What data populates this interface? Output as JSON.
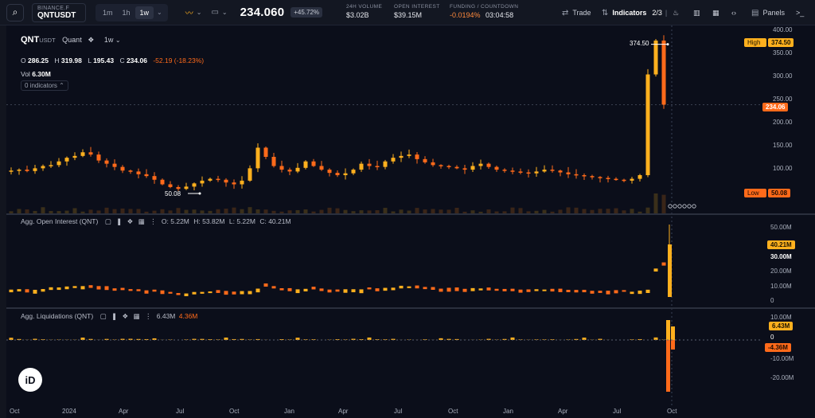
{
  "header": {
    "exchange": "BINANCE.F",
    "symbol": "QNTUSDT",
    "timeframes": [
      {
        "label": "1m",
        "active": false
      },
      {
        "label": "1h",
        "active": false
      },
      {
        "label": "1w",
        "active": true
      }
    ],
    "price": "234.060",
    "change": "+45.72%",
    "stats": [
      {
        "label": "24H VOLUME",
        "value": "$3.02B"
      },
      {
        "label": "OPEN INTEREST",
        "value": "$39.15M"
      },
      {
        "label": "FUNDING / COUNTDOWN",
        "value": "-0.0194%",
        "value2": "03:04:58"
      }
    ],
    "trade_label": "Trade",
    "indicators_label": "Indicators",
    "indicators_count": "2/3",
    "panels_label": "Panels"
  },
  "legend": {
    "title": "QNT",
    "quote": "USDT",
    "source": "Quant",
    "interval": "1w",
    "open": "286.25",
    "high": "319.98",
    "low": "195.43",
    "close": "234.06",
    "change": "-52.19 (-18.23%)",
    "vol_label": "Vol",
    "vol_value": "6.30M",
    "indicators_toggle": "0 indicators"
  },
  "price_axis": {
    "ticks": [
      "400.00",
      "350.00",
      "300.00",
      "250.00",
      "200.00",
      "150.00",
      "100.00"
    ],
    "high_label": "High",
    "high_value": "374.50",
    "low_label": "Low",
    "low_value": "50.08",
    "last_value": "234.06",
    "peak_marker": "374.50",
    "trough_marker": "50.08"
  },
  "open_interest": {
    "title": "Agg. Open Interest (QNT)",
    "o": "5.22M",
    "h": "53.82M",
    "l": "5.22M",
    "c": "40.21M",
    "ticks": [
      "50.00M",
      "30.00M",
      "20.00M",
      "10.00M",
      "0"
    ],
    "last_value": "40.21M"
  },
  "liquidations": {
    "title": "Agg. Liquidations (QNT)",
    "long_value": "6.43M",
    "short_value": "4.36M",
    "ticks": [
      "10.00M",
      "0",
      "-10.00M",
      "-20.00M"
    ],
    "pos_label": "6.43M",
    "neg_label": "-4.36M"
  },
  "x_axis": [
    "Oct",
    "2024",
    "Apr",
    "Jul",
    "Oct",
    "Jan",
    "Apr",
    "Jul",
    "Oct",
    "Jan",
    "Apr",
    "Jul",
    "Oct"
  ],
  "colors": {
    "up": "#ffb01e",
    "down": "#ff6a1a",
    "bg": "#0b0e1a"
  },
  "chart_data": {
    "type": "candlestick",
    "price_path": [
      88,
      90,
      92,
      89,
      95,
      100,
      102,
      110,
      118,
      122,
      130,
      125,
      112,
      105,
      98,
      90,
      88,
      82,
      78,
      70,
      60,
      54,
      50,
      55,
      62,
      68,
      72,
      70,
      64,
      60,
      68,
      95,
      140,
      120,
      100,
      92,
      88,
      96,
      110,
      100,
      92,
      85,
      80,
      84,
      92,
      105,
      100,
      98,
      110,
      118,
      122,
      125,
      115,
      108,
      102,
      100,
      98,
      95,
      92,
      100,
      105,
      98,
      92,
      90,
      88,
      86,
      84,
      88,
      92,
      90,
      86,
      82,
      80,
      78,
      76,
      74,
      72,
      70,
      68,
      72,
      80,
      300,
      374,
      234
    ]
  }
}
